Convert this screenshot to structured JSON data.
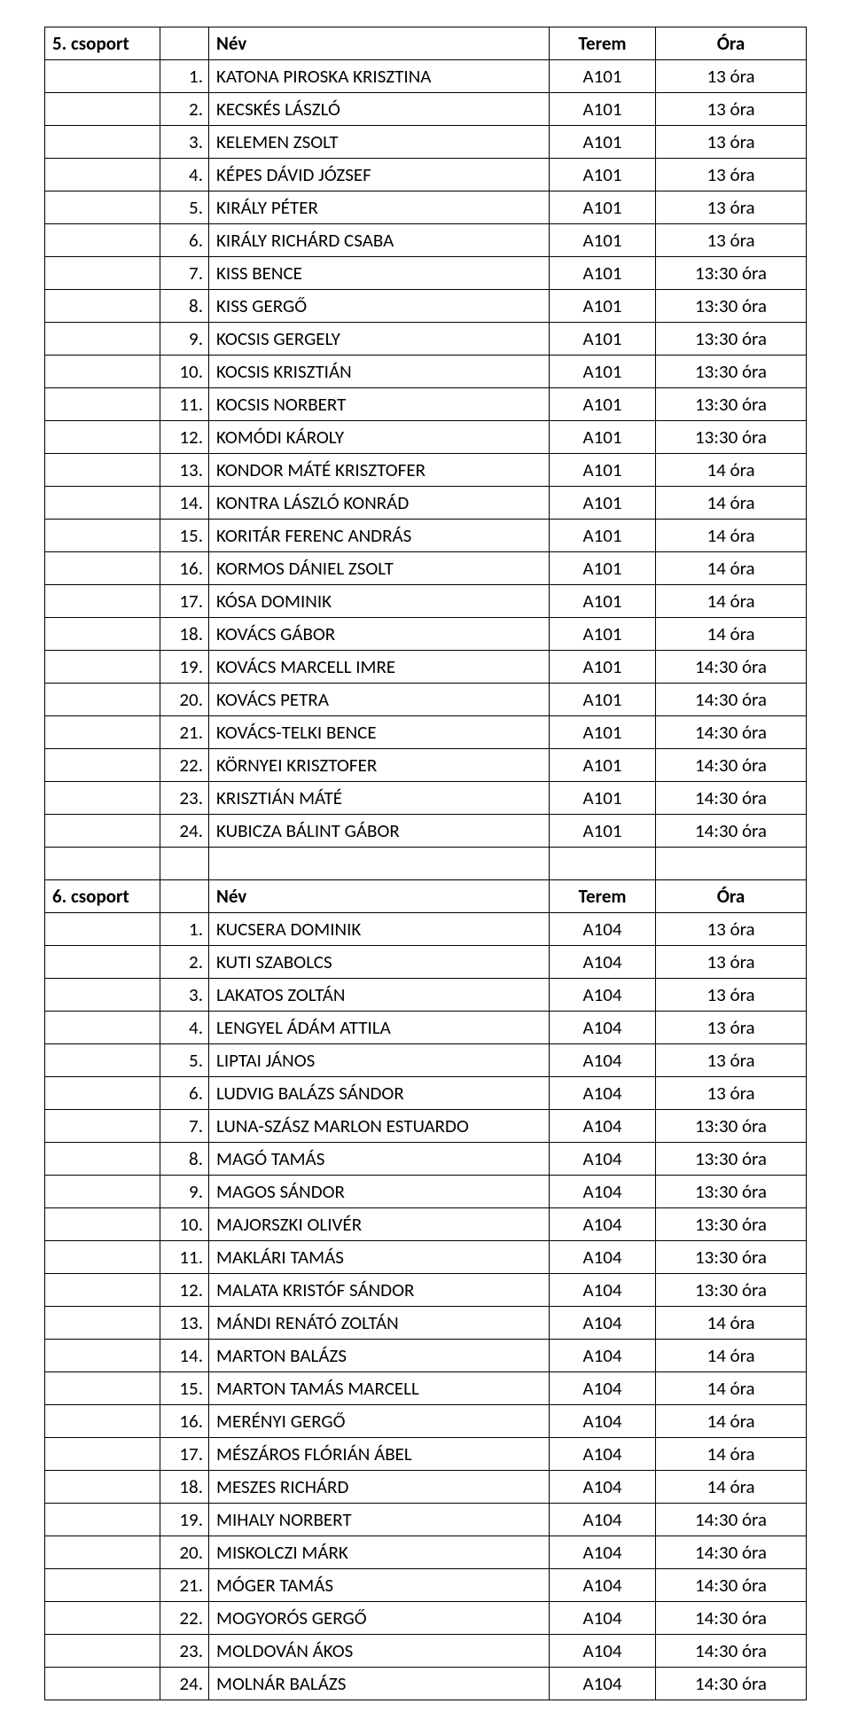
{
  "columns": {
    "name": "Név",
    "room": "Terem",
    "time": "Óra"
  },
  "groups": [
    {
      "label": "5. csoport",
      "rows": [
        {
          "n": "1.",
          "name": "KATONA PIROSKA KRISZTINA",
          "room": "A101",
          "time": "13 óra"
        },
        {
          "n": "2.",
          "name": "KECSKÉS LÁSZLÓ",
          "room": "A101",
          "time": "13 óra"
        },
        {
          "n": "3.",
          "name": "KELEMEN ZSOLT",
          "room": "A101",
          "time": "13 óra"
        },
        {
          "n": "4.",
          "name": "KÉPES DÁVID JÓZSEF",
          "room": "A101",
          "time": "13 óra"
        },
        {
          "n": "5.",
          "name": "KIRÁLY PÉTER",
          "room": "A101",
          "time": "13 óra"
        },
        {
          "n": "6.",
          "name": "KIRÁLY RICHÁRD CSABA",
          "room": "A101",
          "time": "13 óra"
        },
        {
          "n": "7.",
          "name": "KISS BENCE",
          "room": "A101",
          "time": "13:30 óra"
        },
        {
          "n": "8.",
          "name": "KISS GERGŐ",
          "room": "A101",
          "time": "13:30 óra"
        },
        {
          "n": "9.",
          "name": "KOCSIS GERGELY",
          "room": "A101",
          "time": "13:30 óra"
        },
        {
          "n": "10.",
          "name": "KOCSIS KRISZTIÁN",
          "room": "A101",
          "time": "13:30 óra"
        },
        {
          "n": "11.",
          "name": "KOCSIS NORBERT",
          "room": "A101",
          "time": "13:30 óra"
        },
        {
          "n": "12.",
          "name": "KOMÓDI KÁROLY",
          "room": "A101",
          "time": "13:30 óra"
        },
        {
          "n": "13.",
          "name": "KONDOR MÁTÉ KRISZTOFER",
          "room": "A101",
          "time": "14 óra"
        },
        {
          "n": "14.",
          "name": "KONTRA LÁSZLÓ KONRÁD",
          "room": "A101",
          "time": "14 óra"
        },
        {
          "n": "15.",
          "name": "KORITÁR FERENC ANDRÁS",
          "room": "A101",
          "time": "14 óra"
        },
        {
          "n": "16.",
          "name": "KORMOS DÁNIEL ZSOLT",
          "room": "A101",
          "time": "14 óra"
        },
        {
          "n": "17.",
          "name": "KÓSA DOMINIK",
          "room": "A101",
          "time": "14 óra"
        },
        {
          "n": "18.",
          "name": "KOVÁCS GÁBOR",
          "room": "A101",
          "time": "14 óra"
        },
        {
          "n": "19.",
          "name": "KOVÁCS MARCELL IMRE",
          "room": "A101",
          "time": "14:30 óra"
        },
        {
          "n": "20.",
          "name": "KOVÁCS PETRA",
          "room": "A101",
          "time": "14:30 óra"
        },
        {
          "n": "21.",
          "name": "KOVÁCS-TELKI BENCE",
          "room": "A101",
          "time": "14:30 óra"
        },
        {
          "n": "22.",
          "name": "KÖRNYEI KRISZTOFER",
          "room": "A101",
          "time": "14:30 óra"
        },
        {
          "n": "23.",
          "name": "KRISZTIÁN MÁTÉ",
          "room": "A101",
          "time": "14:30 óra"
        },
        {
          "n": "24.",
          "name": "KUBICZA BÁLINT GÁBOR",
          "room": "A101",
          "time": "14:30 óra"
        }
      ]
    },
    {
      "label": "6. csoport",
      "rows": [
        {
          "n": "1.",
          "name": "KUCSERA DOMINIK",
          "room": "A104",
          "time": "13 óra"
        },
        {
          "n": "2.",
          "name": "KUTI SZABOLCS",
          "room": "A104",
          "time": "13 óra"
        },
        {
          "n": "3.",
          "name": "LAKATOS ZOLTÁN",
          "room": "A104",
          "time": "13 óra"
        },
        {
          "n": "4.",
          "name": "LENGYEL ÁDÁM ATTILA",
          "room": "A104",
          "time": "13 óra"
        },
        {
          "n": "5.",
          "name": "LIPTAI JÁNOS",
          "room": "A104",
          "time": "13 óra"
        },
        {
          "n": "6.",
          "name": "LUDVIG BALÁZS SÁNDOR",
          "room": "A104",
          "time": "13 óra"
        },
        {
          "n": "7.",
          "name": "LUNA-SZÁSZ MARLON ESTUARDO",
          "room": "A104",
          "time": "13:30 óra"
        },
        {
          "n": "8.",
          "name": "MAGÓ TAMÁS",
          "room": "A104",
          "time": "13:30 óra"
        },
        {
          "n": "9.",
          "name": "MAGOS SÁNDOR",
          "room": "A104",
          "time": "13:30 óra"
        },
        {
          "n": "10.",
          "name": "MAJORSZKI OLIVÉR",
          "room": "A104",
          "time": "13:30 óra"
        },
        {
          "n": "11.",
          "name": "MAKLÁRI TAMÁS",
          "room": "A104",
          "time": "13:30 óra"
        },
        {
          "n": "12.",
          "name": "MALATA KRISTÓF SÁNDOR",
          "room": "A104",
          "time": "13:30 óra"
        },
        {
          "n": "13.",
          "name": "MÁNDI RENÁTÓ ZOLTÁN",
          "room": "A104",
          "time": "14 óra"
        },
        {
          "n": "14.",
          "name": "MARTON BALÁZS",
          "room": "A104",
          "time": "14 óra"
        },
        {
          "n": "15.",
          "name": "MARTON TAMÁS MARCELL",
          "room": "A104",
          "time": "14 óra"
        },
        {
          "n": "16.",
          "name": "MERÉNYI GERGŐ",
          "room": "A104",
          "time": "14 óra"
        },
        {
          "n": "17.",
          "name": "MÉSZÁROS FLÓRIÁN ÁBEL",
          "room": "A104",
          "time": "14 óra"
        },
        {
          "n": "18.",
          "name": "MESZES RICHÁRD",
          "room": "A104",
          "time": "14 óra"
        },
        {
          "n": "19.",
          "name": "MIHALY NORBERT",
          "room": "A104",
          "time": "14:30 óra"
        },
        {
          "n": "20.",
          "name": "MISKOLCZI MÁRK",
          "room": "A104",
          "time": "14:30 óra"
        },
        {
          "n": "21.",
          "name": "MÓGER TAMÁS",
          "room": "A104",
          "time": "14:30 óra"
        },
        {
          "n": "22.",
          "name": "MOGYORÓS GERGŐ",
          "room": "A104",
          "time": "14:30 óra"
        },
        {
          "n": "23.",
          "name": "MOLDOVÁN ÁKOS",
          "room": "A104",
          "time": "14:30 óra"
        },
        {
          "n": "24.",
          "name": "MOLNÁR BALÁZS",
          "room": "A104",
          "time": "14:30 óra"
        }
      ]
    }
  ]
}
